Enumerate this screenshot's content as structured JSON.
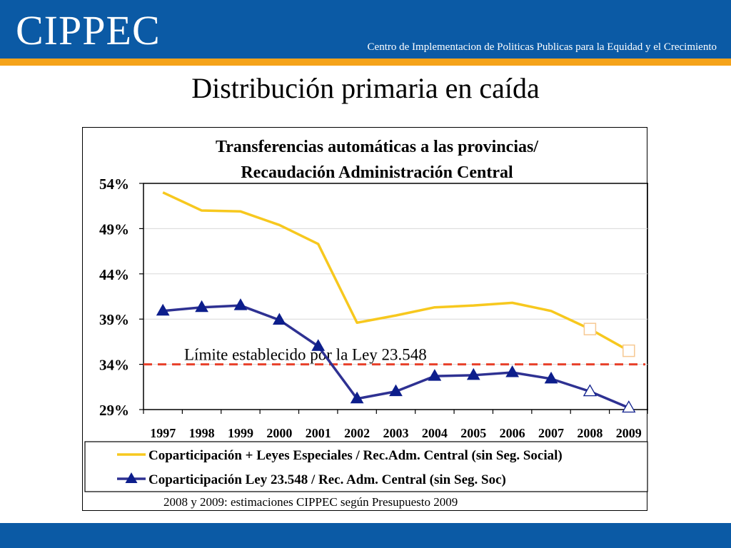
{
  "header": {
    "logo": "CIPPEC",
    "tagline": "Centro de Implementacion de Politicas Publicas para la Equidad y el Crecimiento"
  },
  "slide_title": "Distribución primaria en caída",
  "colors": {
    "header_blue": "#0b5aa5",
    "accent_orange": "#f5a31a",
    "series_yellow": "#f7c81e",
    "series_navy": "#2e3192",
    "marker_navy": "#0d1e8c",
    "limit_red": "#e8402a",
    "estimate_marker_yellow": "#f6c892"
  },
  "chart_data": {
    "type": "line",
    "title_line1": "Transferencias automáticas a las provincias/",
    "title_line2": "Recaudación Administración Central",
    "categories": [
      "1997",
      "1998",
      "1999",
      "2000",
      "2001",
      "2002",
      "2003",
      "2004",
      "2005",
      "2006",
      "2007",
      "2008",
      "2009"
    ],
    "y_ticks": [
      29,
      34,
      39,
      44,
      49,
      54
    ],
    "y_tick_labels": [
      "29%",
      "34%",
      "39%",
      "44%",
      "49%",
      "54%"
    ],
    "ylim": [
      29,
      54
    ],
    "series": [
      {
        "name": "Coparticipación + Leyes Especiales / Rec.Adm. Central (sin Seg. Social)",
        "values": [
          53.0,
          51.0,
          50.9,
          49.4,
          47.3,
          38.6,
          39.4,
          40.3,
          40.5,
          40.8,
          39.9,
          37.9,
          35.5
        ],
        "marker": "none",
        "estimate_marker": "square"
      },
      {
        "name": "Coparticipación Ley 23.548 / Rec. Adm. Central (sin Seg. Soc)",
        "values": [
          39.9,
          40.3,
          40.5,
          38.9,
          36.0,
          30.2,
          31.0,
          32.7,
          32.8,
          33.1,
          32.4,
          31.0,
          29.2
        ],
        "marker": "triangle",
        "estimate_marker": "triangle-open"
      }
    ],
    "estimate_from_index": 11,
    "limit_line": {
      "value": 34.0,
      "label": "Límite establecido por la Ley 23.548"
    },
    "footnote": "2008 y 2009: estimaciones CIPPEC según Presupuesto 2009",
    "grid": "horizontal",
    "legend_position": "bottom"
  }
}
